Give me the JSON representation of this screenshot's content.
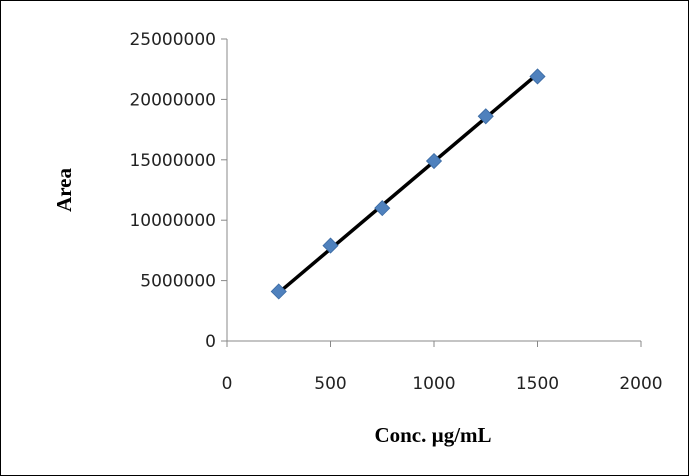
{
  "chart_data": {
    "type": "scatter",
    "title": "",
    "xlabel": "Conc. µg/mL",
    "ylabel": "Area",
    "xlim": [
      0,
      2000
    ],
    "ylim": [
      0,
      25000000
    ],
    "x_ticks": [
      0,
      500,
      1000,
      1500,
      2000
    ],
    "y_ticks": [
      0,
      5000000,
      10000000,
      15000000,
      20000000,
      25000000
    ],
    "x_tick_labels": [
      "0",
      "500",
      "1000",
      "1500",
      "2000"
    ],
    "y_tick_labels": [
      "0",
      "5000000",
      "10000000",
      "15000000",
      "20000000",
      "25000000"
    ],
    "grid": false,
    "legend": "none",
    "series": [
      {
        "x": [
          250,
          500,
          750,
          1000,
          1250,
          1500
        ],
        "y": [
          4100000,
          7900000,
          11000000,
          14900000,
          18600000,
          21900000
        ],
        "marker": "diamond",
        "color": "#4f81bd"
      }
    ],
    "trendline": {
      "type": "linear",
      "x": [
        250,
        1500
      ],
      "y": [
        4000000,
        22100000
      ],
      "color": "#000000"
    }
  }
}
